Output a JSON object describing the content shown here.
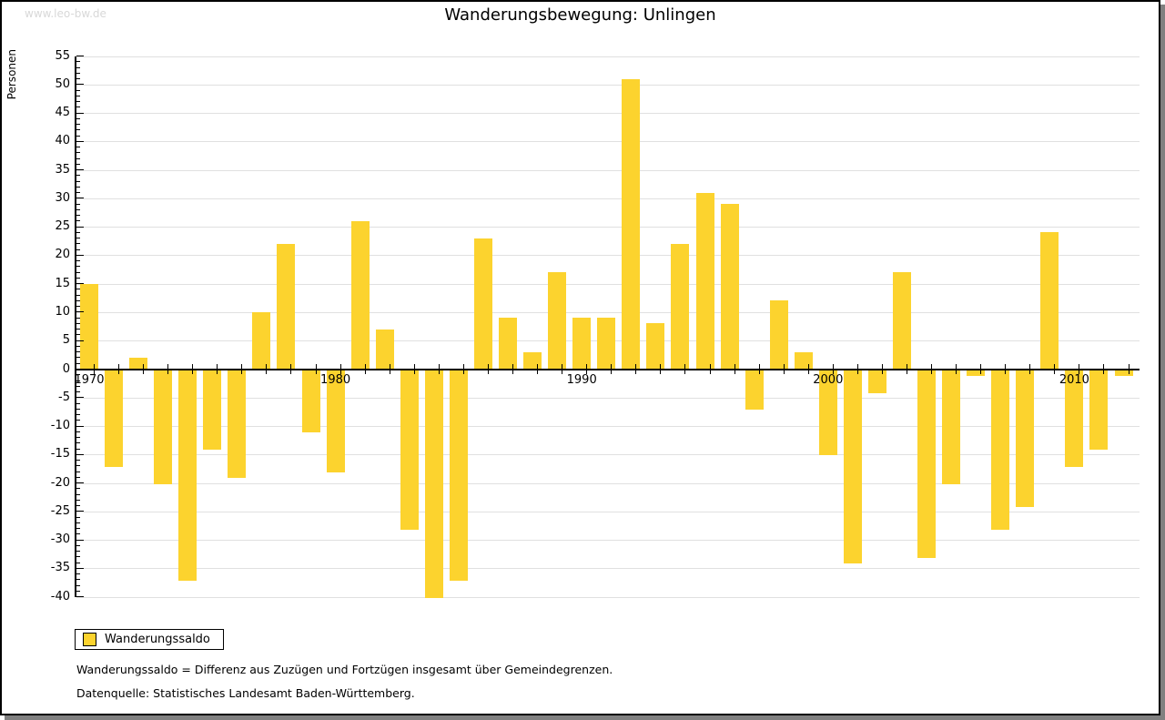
{
  "watermark": "www.leo-bw.de",
  "title": "Wanderungsbewegung: Unlingen",
  "legend": {
    "label": "Wanderungssaldo"
  },
  "footnotes": [
    "Wanderungssaldo = Differenz aus Zuzügen und Fortzügen insgesamt über Gemeindegrenzen.",
    "Datenquelle: Statistisches Landesamt Baden-Württemberg."
  ],
  "chart_data": {
    "type": "bar",
    "title": "Wanderungsbewegung: Unlingen",
    "xlabel": "",
    "ylabel": "Personen",
    "ylim": [
      -40,
      55
    ],
    "ytick_step": 5,
    "yminor_step": 1,
    "grid": true,
    "bar_color": "#fcd32e",
    "gridline_color": "#e0e0e0",
    "legend_position": "bottom-left",
    "legend_entries": [
      "Wanderungssaldo"
    ],
    "xtick_years": [
      1970,
      1980,
      1990,
      2000,
      2010
    ],
    "series": [
      {
        "name": "Wanderungssaldo",
        "years": [
          1970,
          1971,
          1972,
          1973,
          1974,
          1975,
          1976,
          1977,
          1978,
          1979,
          1980,
          1981,
          1982,
          1983,
          1984,
          1985,
          1986,
          1987,
          1988,
          1989,
          1990,
          1991,
          1992,
          1993,
          1994,
          1995,
          1996,
          1997,
          1998,
          1999,
          2000,
          2001,
          2002,
          2003,
          2004,
          2005,
          2006,
          2007,
          2008,
          2009,
          2010,
          2011,
          2012
        ],
        "values": [
          15,
          -17,
          2,
          -20,
          -37,
          -14,
          -19,
          10,
          22,
          -11,
          -18,
          26,
          7,
          -28,
          -40,
          -37,
          23,
          9,
          3,
          17,
          9,
          9,
          51,
          8,
          22,
          31,
          29,
          -7,
          12,
          3,
          -15,
          -34,
          -4,
          17,
          -33,
          -20,
          -1,
          -28,
          -24,
          24,
          -17,
          -14,
          -1
        ]
      }
    ]
  }
}
